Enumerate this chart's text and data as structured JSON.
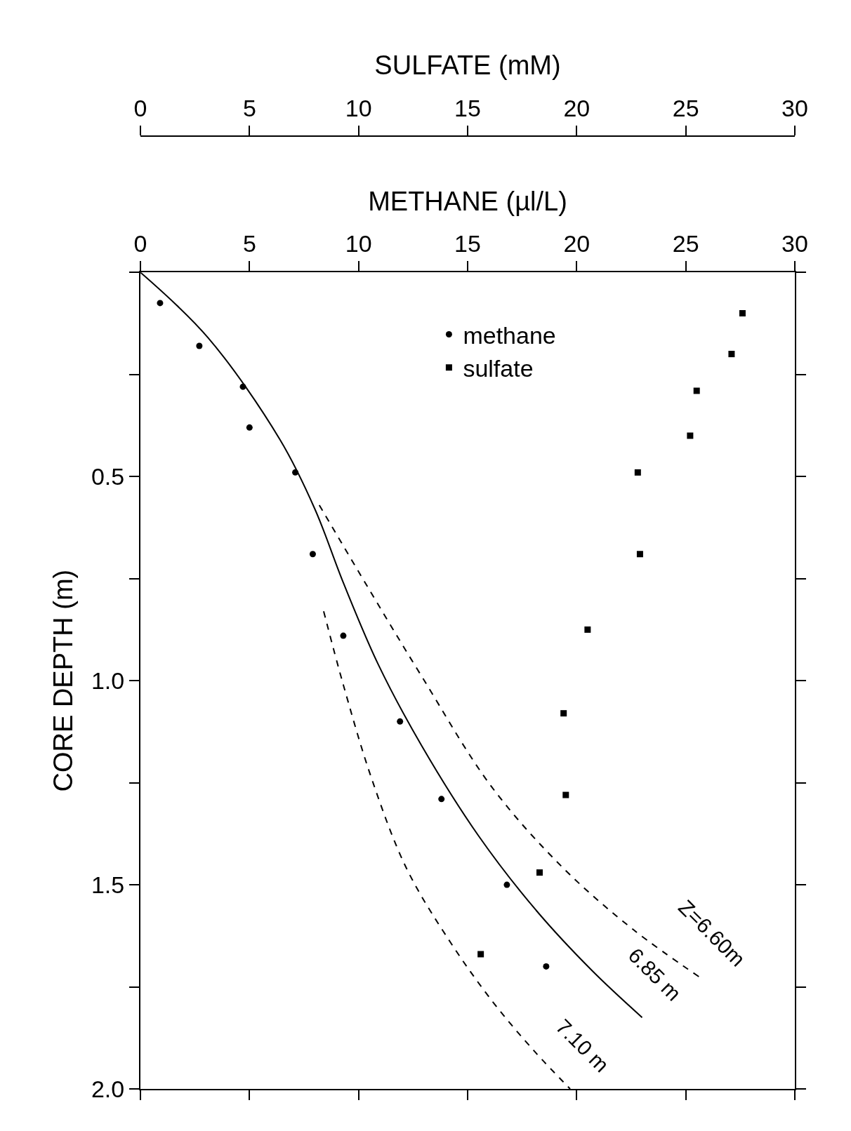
{
  "chart_data": {
    "type": "scatter",
    "xlabel": "METHANE (µl/L)",
    "x2label": "SULFATE (mM)",
    "ylabel": "CORE DEPTH (m)",
    "xlim": [
      0,
      30
    ],
    "xticks": [
      0,
      5,
      10,
      15,
      20,
      25,
      30
    ],
    "x2lim": [
      0,
      30
    ],
    "x2ticks": [
      0,
      5,
      10,
      15,
      20,
      25,
      30
    ],
    "ylim": [
      2.0,
      0
    ],
    "yticks": [
      {
        "value": 0,
        "label": null
      },
      {
        "value": 0.25,
        "label": null
      },
      {
        "value": 0.5,
        "label": "0.5"
      },
      {
        "value": 0.75,
        "label": null
      },
      {
        "value": 1.0,
        "label": "1.0"
      },
      {
        "value": 1.25,
        "label": null
      },
      {
        "value": 1.5,
        "label": "1.5"
      },
      {
        "value": 1.75,
        "label": null
      },
      {
        "value": 2.0,
        "label": "2.0"
      }
    ],
    "legend": "top",
    "series": [
      {
        "name": "methane",
        "marker": "circle",
        "color": "#000000",
        "x": [
          0.9,
          2.7,
          4.7,
          5.0,
          7.1,
          7.9,
          9.3,
          11.9,
          13.8,
          16.8,
          18.6
        ],
        "values": [
          0.075,
          0.18,
          0.28,
          0.38,
          0.49,
          0.69,
          0.89,
          1.1,
          1.29,
          1.5,
          1.7
        ]
      },
      {
        "name": "sulfate",
        "type": "scatter",
        "marker": "square",
        "color": "#000000",
        "axis": "x2",
        "x": [
          27.6,
          27.1,
          25.5,
          25.2,
          22.8,
          22.9,
          20.5,
          19.4,
          19.5,
          18.3,
          15.6
        ],
        "values": [
          0.1,
          0.2,
          0.29,
          0.4,
          0.49,
          0.69,
          0.875,
          1.08,
          1.28,
          1.47,
          1.67
        ]
      },
      {
        "type": "line",
        "line_style": "solid",
        "color": "#000000",
        "x": [
          0,
          3.1,
          6.4,
          8.0,
          9.3,
          10.9,
          12.9,
          15.5,
          18.1,
          20.7,
          23.0
        ],
        "values": [
          0,
          0.16,
          0.41,
          0.58,
          0.76,
          0.96,
          1.16,
          1.38,
          1.56,
          1.71,
          1.825
        ]
      },
      {
        "type": "line",
        "line_style": "dashed",
        "color": "#000000",
        "x": [
          8.2,
          10.3,
          12.9,
          16.1,
          19.4,
          22.6,
          25.6
        ],
        "values": [
          0.57,
          0.76,
          0.99,
          1.26,
          1.46,
          1.61,
          1.725
        ]
      },
      {
        "type": "line",
        "line_style": "dashed",
        "color": "#000000",
        "x": [
          8.4,
          9.3,
          10.6,
          12.2,
          14.2,
          16.2,
          18.1,
          19.7
        ],
        "values": [
          0.83,
          1.01,
          1.24,
          1.46,
          1.64,
          1.79,
          1.91,
          2.0
        ]
      }
    ],
    "annotations": [
      {
        "text": "Z=6.60m",
        "x": 25.6,
        "y": 1.725
      },
      {
        "text": "6.85 m",
        "x": 23.0,
        "y": 1.825
      },
      {
        "text": "7.10 m",
        "x": 19.7,
        "y": 2.0
      }
    ]
  }
}
